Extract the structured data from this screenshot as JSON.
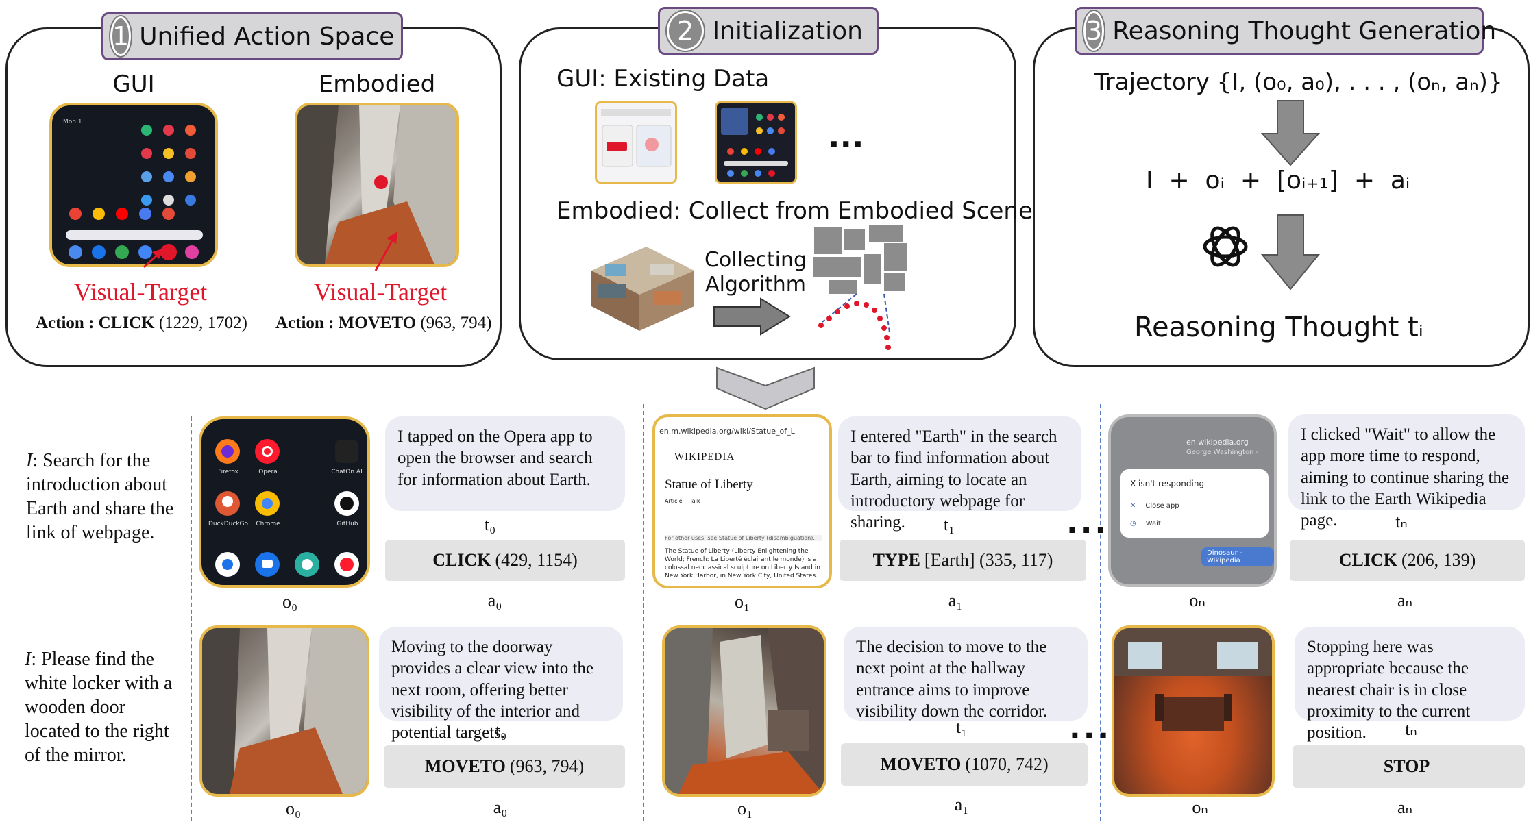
{
  "sections": {
    "unified": {
      "num": "1",
      "title": "Unified Action Space",
      "gui_label": "GUI",
      "embodied_label": "Embodied",
      "visual_target": "Visual-Target",
      "gui_action_kw": "Action : CLICK",
      "gui_action_coords": "(1229, 1702)",
      "emb_action_kw": "Action : MOVETO",
      "emb_action_coords": "(963, 794)"
    },
    "init": {
      "num": "2",
      "title": "Initialization",
      "gui_line": "GUI: Existing Data",
      "ellipsis": "...",
      "embodied_line": "Embodied: Collect from Embodied Scene",
      "algo_line1": "Collecting",
      "algo_line2": "Algorithm"
    },
    "reason": {
      "num": "3",
      "title": "Reasoning Thought Generation",
      "trajectory": "Trajectory {I, (o₀, a₀), . . . , (oₙ, aₙ)}",
      "formula": "I  +  oᵢ  +  [oᵢ₊₁]  +  aᵢ",
      "result": "Reasoning Thought  tᵢ"
    }
  },
  "gui_example": {
    "instruction_prefix": "I",
    "instruction_text": ":  Search for the introduction about Earth and share the link of webpage.",
    "phone_apps": [
      "Firefox",
      "Opera",
      "ChatOn AI",
      "DuckDuckGo",
      "Chrome",
      "GitHub"
    ],
    "steps": [
      {
        "obs": "o₀",
        "thought": "I tapped on the Opera app to open the browser and search for information about Earth.",
        "t": "t₀",
        "action_kw": "CLICK",
        "action_args": "(429, 1154)",
        "a": "a₀"
      },
      {
        "obs": "o₁",
        "thought": "I entered \"Earth\" in the search bar to find information about Earth, aiming to locate an introductory webpage for sharing.",
        "t": "t₁",
        "action_kw": "TYPE",
        "action_args": "[Earth] (335, 117)",
        "a": "a₁"
      },
      {
        "obs": "oₙ",
        "thought": "I clicked  \"Wait\" to allow the app more time to respond, aiming to continue sharing the link to the Earth Wikipedia page.",
        "t": "tₙ",
        "action_kw": "CLICK",
        "action_args": "(206, 139)",
        "a": "aₙ"
      }
    ],
    "wiki": {
      "url": "en.m.wikipedia.org/wiki/Statue_of_L",
      "brand": "WIKIPEDIA",
      "title": "Statue of Liberty",
      "tab1": "Article",
      "tab2": "Talk",
      "note": "For other uses, see Statue of Liberty (disambiguation).",
      "body": "The Statue of Liberty (Liberty Enlightening the World; French: La Liberté éclairant le monde) is a colossal neoclassical sculpture on Liberty Island in New York Harbor, in New York City, United States."
    },
    "dialog": {
      "title": "X isn't responding",
      "opt1": "Close app",
      "opt2": "Wait",
      "site": "en.wikipedia.org",
      "person": "George Washington -",
      "chip": "Dinosaur - Wikipedia"
    },
    "ellipsis": "..."
  },
  "embodied_example": {
    "instruction_prefix": "I",
    "instruction_text": ": Please find the white locker with a wooden door located to the right of the mirror.",
    "steps": [
      {
        "obs": "o₀",
        "thought": "Moving to the doorway provides a clear view into the next room, offering better visibility of the interior and potential targets.",
        "t": "t₀",
        "action_kw": "MOVETO",
        "action_args": "(963, 794)",
        "a": "a₀"
      },
      {
        "obs": "o₁",
        "thought": "The decision to move to the next point at the hallway entrance aims to improve visibility down the corridor.",
        "t": "t₁",
        "action_kw": "MOVETO",
        "action_args": "(1070, 742)",
        "a": "a₁"
      },
      {
        "obs": "oₙ",
        "thought": "Stopping here was appropriate because the nearest chair is in close proximity to the current position.",
        "t": "tₙ",
        "action_kw": "STOP",
        "action_args": "",
        "a": "aₙ"
      }
    ],
    "ellipsis": "..."
  },
  "colors": {
    "tab_border": "#6a4a80",
    "phone_border": "#e7b94a",
    "visual_target": "#e0162b",
    "divider": "#5b7fc7"
  }
}
